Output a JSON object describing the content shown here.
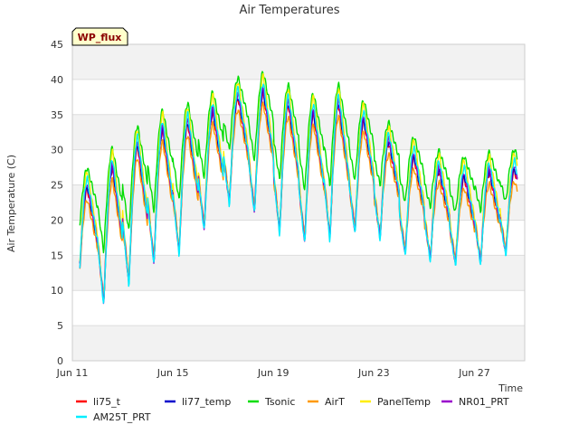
{
  "chart_data": {
    "type": "line",
    "title": "Air Temperatures",
    "tag": "WP_flux",
    "xlabel": "Time",
    "ylabel": "Air Temperature (C)",
    "ylim": [
      0,
      45
    ],
    "xlim": [
      0,
      18
    ],
    "grid": "horizontal bands",
    "legend_placement": "bottom",
    "x_ticks": [
      {
        "x": 0,
        "label": "Jun 11"
      },
      {
        "x": 4,
        "label": "Jun 15"
      },
      {
        "x": 8,
        "label": "Jun 19"
      },
      {
        "x": 12,
        "label": "Jun 23"
      },
      {
        "x": 16,
        "label": "Jun 27"
      }
    ],
    "y_ticks": [
      0,
      5,
      10,
      15,
      20,
      25,
      30,
      35,
      40,
      45
    ],
    "x_unit": "days since Jun 11",
    "daily_min_max": {
      "days": [
        0,
        1,
        2,
        3,
        4,
        5,
        6,
        7,
        8,
        9,
        10,
        11,
        12,
        13,
        14,
        15,
        16,
        17
      ],
      "min": [
        11,
        8,
        10.5,
        14,
        15,
        18,
        23,
        22,
        19,
        17,
        17.5,
        18.5,
        18.5,
        15.5,
        15,
        14,
        14,
        15.5
      ],
      "max": [
        22,
        26,
        28,
        32,
        33,
        34,
        36,
        38,
        38,
        35,
        35,
        37,
        32,
        30,
        28,
        26,
        26,
        27
      ]
    },
    "series": [
      {
        "name": "li75_t",
        "color": "#ff0000",
        "offset_max": 0,
        "offset_min": 0
      },
      {
        "name": "li77_temp",
        "color": "#0000cc",
        "offset_max": 0.3,
        "offset_min": 0
      },
      {
        "name": "Tsonic",
        "color": "#00dd00",
        "offset_max": 3,
        "offset_min": 7
      },
      {
        "name": "AirT",
        "color": "#ff9900",
        "offset_max": -1.5,
        "offset_min": 0
      },
      {
        "name": "PanelTemp",
        "color": "#ffee00",
        "offset_max": 2.5,
        "offset_min": 0
      },
      {
        "name": "NR01_PRT",
        "color": "#9900cc",
        "offset_max": 0.8,
        "offset_min": -0.3
      },
      {
        "name": "AM25T_PRT",
        "color": "#00eeff",
        "offset_max": 1.5,
        "offset_min": -0.8
      }
    ]
  }
}
